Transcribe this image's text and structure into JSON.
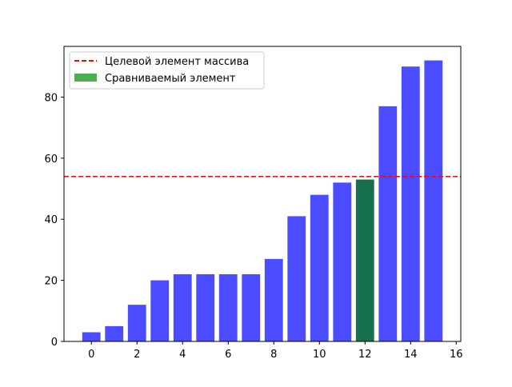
{
  "chart_data": {
    "type": "bar",
    "title": "",
    "xlabel": "",
    "ylabel": "",
    "x": [
      0,
      1,
      2,
      3,
      4,
      5,
      6,
      7,
      8,
      9,
      10,
      11,
      12,
      13,
      14,
      15
    ],
    "values": [
      3,
      5,
      12,
      20,
      22,
      22,
      22,
      22,
      27,
      41,
      48,
      52,
      53,
      77,
      90,
      92
    ],
    "highlight_index": 12,
    "bar_color": "#4b4bff",
    "highlight_color": "#17704d",
    "target_line": {
      "value": 54,
      "color": "#ff0000",
      "style": "dashed"
    },
    "xlim": [
      -1.2,
      16.2
    ],
    "ylim": [
      0,
      96.6
    ],
    "xticks": [
      0,
      2,
      4,
      6,
      8,
      10,
      12,
      14,
      16
    ],
    "yticks": [
      0,
      20,
      40,
      60,
      80
    ],
    "grid": false,
    "legend": {
      "position": "top-left",
      "entries": [
        {
          "label": "Целевой элемент массива",
          "kind": "line",
          "color": "#ff0000"
        },
        {
          "label": "Сравниваемый элемент",
          "kind": "patch",
          "color": "#4caf50"
        }
      ]
    }
  }
}
